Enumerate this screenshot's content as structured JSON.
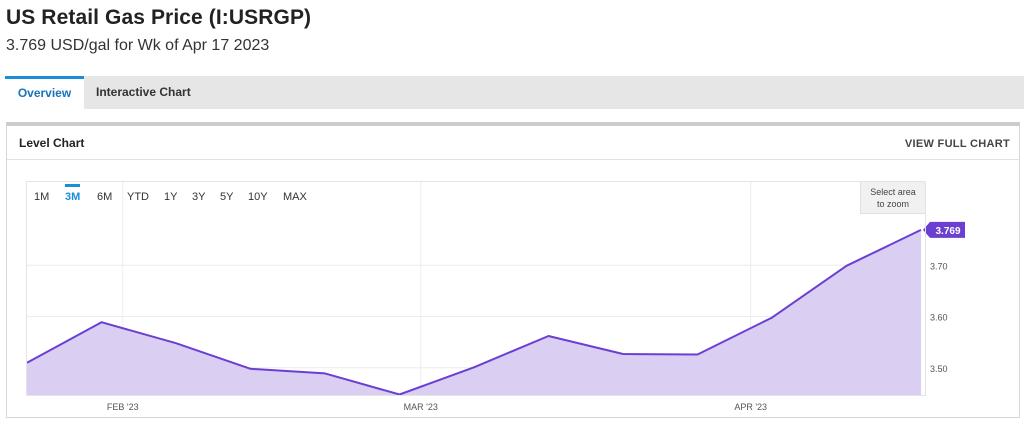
{
  "header": {
    "title": "US Retail Gas Price (I:USRGP)",
    "subtitle": "3.769 USD/gal for Wk of Apr 17 2023"
  },
  "tabs": [
    {
      "label": "Overview",
      "active": true
    },
    {
      "label": "Interactive Chart",
      "active": false
    }
  ],
  "card": {
    "title": "Level Chart",
    "full_chart_label": "VIEW FULL CHART"
  },
  "ranges": [
    {
      "label": "1M",
      "active": false
    },
    {
      "label": "3M",
      "active": true
    },
    {
      "label": "6M",
      "active": false
    },
    {
      "label": "YTD",
      "active": false
    },
    {
      "label": "1Y",
      "active": false
    },
    {
      "label": "3Y",
      "active": false
    },
    {
      "label": "5Y",
      "active": false
    },
    {
      "label": "10Y",
      "active": false
    },
    {
      "label": "MAX",
      "active": false
    }
  ],
  "zoom": {
    "line1": "Select area",
    "line2": "to zoom"
  },
  "chart_data": {
    "type": "area",
    "x": [
      "2023-01-23",
      "2023-01-30",
      "2023-02-06",
      "2023-02-13",
      "2023-02-20",
      "2023-02-27",
      "2023-03-06",
      "2023-03-13",
      "2023-03-20",
      "2023-03-27",
      "2023-04-03",
      "2023-04-10",
      "2023-04-17"
    ],
    "values": [
      3.51,
      3.589,
      3.548,
      3.498,
      3.489,
      3.448,
      3.501,
      3.562,
      3.527,
      3.526,
      3.598,
      3.699,
      3.769
    ],
    "x_tick_labels": [
      "FEB '23",
      "MAR '23",
      "APR '23"
    ],
    "x_tick_dates": [
      "2023-02-01",
      "2023-03-01",
      "2023-04-01"
    ],
    "y_ticks": [
      3.5,
      3.6,
      3.7
    ],
    "y_tick_labels": [
      "3.50",
      "3.60",
      "3.70"
    ],
    "ylim": [
      3.445,
      3.8
    ],
    "last_value_label": "3.769",
    "line_color": "#6a3fd1",
    "fill_color": "#d8cbf2",
    "grid": true,
    "y_axis_side": "right"
  }
}
